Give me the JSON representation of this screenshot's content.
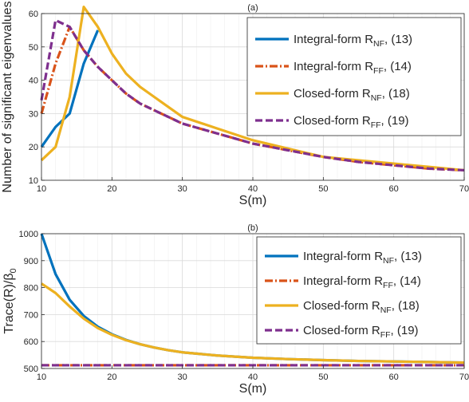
{
  "chart_data": [
    {
      "id": "a",
      "type": "line",
      "title": "(a)",
      "xlabel": "S(m)",
      "ylabel": "Number of significant eigenvalues",
      "xlim": [
        10,
        70
      ],
      "ylim": [
        10,
        60
      ],
      "xticks": [
        10,
        20,
        30,
        40,
        50,
        60,
        70
      ],
      "yticks": [
        10,
        20,
        30,
        40,
        50,
        60
      ],
      "grid": true,
      "legend_position": "top-right",
      "series": [
        {
          "name": "Integral-form R_NF, (13)",
          "legend": {
            "pre": "Integral-form R",
            "sub": "NF",
            "post": ", (13)"
          },
          "color": "#0072BD",
          "dash": "solid",
          "x": [
            10,
            12,
            14,
            16,
            18
          ],
          "y": [
            20,
            26,
            30,
            45,
            55
          ]
        },
        {
          "name": "Integral-form R_FF, (14)",
          "legend": {
            "pre": "Integral-form R",
            "sub": "FF",
            "post": ", (14)"
          },
          "color": "#D95319",
          "dash": "dashdot",
          "x": [
            10,
            12,
            14,
            16,
            18,
            20,
            22,
            24,
            26,
            28,
            30,
            35,
            40,
            45,
            50,
            55,
            60,
            65,
            70
          ],
          "y": [
            30,
            45,
            56,
            49,
            44,
            40,
            36,
            33,
            31,
            29,
            27,
            24,
            21,
            19,
            17,
            15.5,
            14.5,
            13.5,
            13
          ]
        },
        {
          "name": "Closed-form R_NF, (18)",
          "legend": {
            "pre": "Closed-form R",
            "sub": "NF",
            "post": ", (18)"
          },
          "color": "#EDB120",
          "dash": "solid",
          "x": [
            10,
            12,
            14,
            16,
            18,
            20,
            22,
            24,
            26,
            28,
            30,
            35,
            40,
            45,
            50,
            55,
            60,
            65,
            70
          ],
          "y": [
            16,
            20,
            35,
            62,
            56,
            48,
            42,
            38,
            35,
            32,
            29,
            25.5,
            22,
            19.5,
            17,
            16,
            15,
            14,
            13
          ]
        },
        {
          "name": "Closed-form R_FF, (19)",
          "legend": {
            "pre": "Closed-form R",
            "sub": "FF",
            "post": ", (19)"
          },
          "color": "#7E2F8E",
          "dash": "dash",
          "x": [
            10,
            12,
            14,
            16,
            18,
            20,
            22,
            24,
            26,
            28,
            30,
            35,
            40,
            45,
            50,
            55,
            60,
            65,
            70
          ],
          "y": [
            34,
            58,
            56,
            49,
            44,
            40,
            36,
            33,
            31,
            29,
            27,
            24,
            21,
            19,
            17,
            15.5,
            14.5,
            13.5,
            13
          ]
        }
      ]
    },
    {
      "id": "b",
      "type": "line",
      "title": "(b)",
      "xlabel": "S(m)",
      "ylabel": "Trace(R)/β",
      "ylabel_sub": "0",
      "xlim": [
        10,
        70
      ],
      "ylim": [
        500,
        1000
      ],
      "xticks": [
        10,
        20,
        30,
        40,
        50,
        60,
        70
      ],
      "yticks": [
        500,
        600,
        700,
        800,
        900,
        1000
      ],
      "grid": true,
      "legend_position": "top-right",
      "series": [
        {
          "name": "Integral-form R_NF, (13)",
          "legend": {
            "pre": "Integral-form R",
            "sub": "NF",
            "post": ", (13)"
          },
          "color": "#0072BD",
          "dash": "solid",
          "x": [
            10,
            12,
            14,
            16,
            18,
            20,
            22,
            24,
            26,
            28,
            30,
            35,
            40,
            45,
            50,
            55,
            60,
            65,
            70
          ],
          "y": [
            1000,
            850,
            755,
            695,
            655,
            627,
            606,
            590,
            578,
            568,
            560,
            548,
            540,
            535,
            531,
            528,
            526,
            524,
            522
          ]
        },
        {
          "name": "Integral-form R_FF, (14)",
          "legend": {
            "pre": "Integral-form R",
            "sub": "FF",
            "post": ", (14)"
          },
          "color": "#D95319",
          "dash": "dashdot",
          "x": [
            10,
            70
          ],
          "y": [
            512,
            512
          ]
        },
        {
          "name": "Closed-form R_NF, (18)",
          "legend": {
            "pre": "Closed-form R",
            "sub": "NF",
            "post": ", (18)"
          },
          "color": "#EDB120",
          "dash": "solid",
          "x": [
            10,
            12,
            14,
            16,
            18,
            20,
            22,
            24,
            26,
            28,
            30,
            35,
            40,
            45,
            50,
            55,
            60,
            65,
            70
          ],
          "y": [
            815,
            780,
            730,
            685,
            650,
            625,
            605,
            590,
            578,
            568,
            560,
            548,
            540,
            535,
            531,
            528,
            526,
            524,
            522
          ]
        },
        {
          "name": "Closed-form R_FF, (19)",
          "legend": {
            "pre": "Closed-form R",
            "sub": "FF",
            "post": ", (19)"
          },
          "color": "#7E2F8E",
          "dash": "dash",
          "x": [
            10,
            70
          ],
          "y": [
            512,
            512
          ]
        }
      ]
    }
  ]
}
